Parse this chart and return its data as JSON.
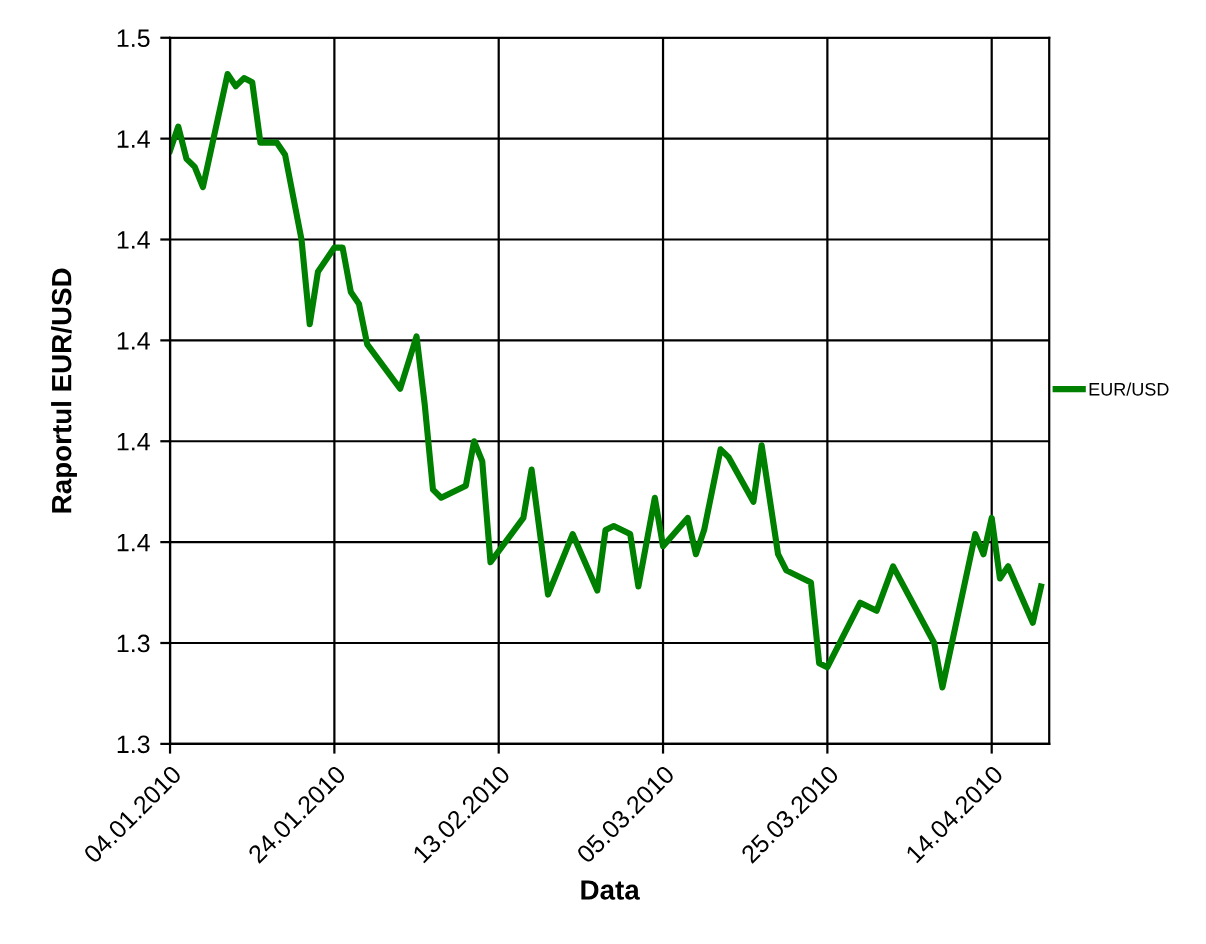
{
  "chart_data": {
    "type": "line",
    "xlabel": "Data",
    "ylabel": "Raportul EUR/USD",
    "x": [
      "2010-01-04",
      "2010-01-05",
      "2010-01-06",
      "2010-01-07",
      "2010-01-08",
      "2010-01-11",
      "2010-01-12",
      "2010-01-13",
      "2010-01-14",
      "2010-01-15",
      "2010-01-17",
      "2010-01-18",
      "2010-01-20",
      "2010-01-21",
      "2010-01-22",
      "2010-01-24",
      "2010-01-25",
      "2010-01-26",
      "2010-01-27",
      "2010-01-28",
      "2010-02-01",
      "2010-02-03",
      "2010-02-04",
      "2010-02-05",
      "2010-02-06",
      "2010-02-09",
      "2010-02-10",
      "2010-02-11",
      "2010-02-12",
      "2010-02-16",
      "2010-02-17",
      "2010-02-19",
      "2010-02-22",
      "2010-02-25",
      "2010-02-26",
      "2010-02-27",
      "2010-03-01",
      "2010-03-02",
      "2010-03-04",
      "2010-03-05",
      "2010-03-08",
      "2010-03-09",
      "2010-03-10",
      "2010-03-12",
      "2010-03-13",
      "2010-03-16",
      "2010-03-17",
      "2010-03-19",
      "2010-03-20",
      "2010-03-23",
      "2010-03-24",
      "2010-03-25",
      "2010-03-29",
      "2010-03-31",
      "2010-04-02",
      "2010-04-07",
      "2010-04-08",
      "2010-04-12",
      "2010-04-13",
      "2010-04-14",
      "2010-04-15",
      "2010-04-16",
      "2010-04-19",
      "2010-04-20"
    ],
    "series": [
      {
        "name": "EUR/USD",
        "color": "#008000",
        "values": [
          1.447,
          1.453,
          1.445,
          1.443,
          1.438,
          1.466,
          1.463,
          1.465,
          1.464,
          1.449,
          1.449,
          1.446,
          1.425,
          1.404,
          1.417,
          1.423,
          1.423,
          1.412,
          1.409,
          1.399,
          1.388,
          1.401,
          1.384,
          1.363,
          1.361,
          1.364,
          1.375,
          1.37,
          1.345,
          1.356,
          1.368,
          1.337,
          1.352,
          1.338,
          1.353,
          1.354,
          1.352,
          1.339,
          1.361,
          1.349,
          1.356,
          1.347,
          1.353,
          1.373,
          1.371,
          1.36,
          1.374,
          1.347,
          1.343,
          1.34,
          1.32,
          1.319,
          1.335,
          1.333,
          1.344,
          1.325,
          1.314,
          1.352,
          1.347,
          1.356,
          1.341,
          1.344,
          1.33,
          1.339
        ]
      }
    ],
    "xlim": [
      "2010-01-04",
      "2010-04-21"
    ],
    "xticks": [
      {
        "value": "2010-01-04",
        "label": "04.01.2010"
      },
      {
        "value": "2010-01-24",
        "label": "24.01.2010"
      },
      {
        "value": "2010-02-13",
        "label": "13.02.2010"
      },
      {
        "value": "2010-03-05",
        "label": "05.03.2010"
      },
      {
        "value": "2010-03-25",
        "label": "25.03.2010"
      },
      {
        "value": "2010-04-14",
        "label": "14.04.2010"
      }
    ],
    "ylim": [
      1.3,
      1.475
    ],
    "yticks": [
      {
        "value": 1.3,
        "label": "1.3"
      },
      {
        "value": 1.325,
        "label": "1.3"
      },
      {
        "value": 1.35,
        "label": "1.4"
      },
      {
        "value": 1.375,
        "label": "1.4"
      },
      {
        "value": 1.4,
        "label": "1.4"
      },
      {
        "value": 1.425,
        "label": "1.4"
      },
      {
        "value": 1.45,
        "label": "1.4"
      },
      {
        "value": 1.475,
        "label": "1.5"
      }
    ],
    "grid": true,
    "legend": "right",
    "marker": "none",
    "line_style": "solid"
  }
}
